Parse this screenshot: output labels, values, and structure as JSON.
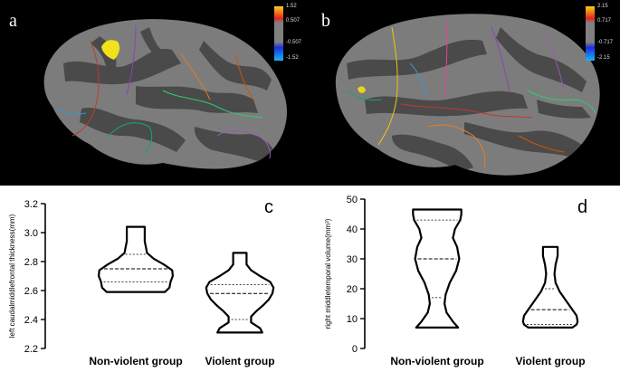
{
  "panels": {
    "a": {
      "letter": "a",
      "colorbar": {
        "labels": [
          "1.52",
          "0.507",
          "-0.507",
          "-1.52"
        ],
        "colors": [
          "#f5d21c",
          "#e8231a",
          "#808080",
          "#1a2fe0",
          "#19b5f0"
        ]
      },
      "highlight_color": "#f2e21a"
    },
    "b": {
      "letter": "b",
      "colorbar": {
        "labels": [
          "2.15",
          "0.717",
          "-0.717",
          "-2.15"
        ],
        "colors": [
          "#f5d21c",
          "#e8231a",
          "#808080",
          "#1a2fe0",
          "#19b5f0"
        ]
      },
      "highlight_color": "#e6d81a"
    },
    "c": {
      "letter": "c"
    },
    "d": {
      "letter": "d"
    }
  },
  "brain": {
    "gyrus_color": "#7c7c7c",
    "sulcus_color": "#4a4a4a",
    "boundary_colors": [
      "#c0392b",
      "#8e44ad",
      "#2ecc71",
      "#e67e22",
      "#9b59b6",
      "#16a085",
      "#d35400",
      "#3498db",
      "#f1c40f",
      "#e84393"
    ]
  },
  "chart_data": [
    {
      "type": "violin",
      "panel": "c",
      "ylabel": "left caudalmiddlefrontal thickness(mm)",
      "ylim": [
        2.2,
        3.2
      ],
      "yticks": [
        "2.2",
        "2.4",
        "2.6",
        "2.8",
        "3.0",
        "3.2"
      ],
      "categories": [
        "Non-violent group",
        "Violent group"
      ],
      "series": [
        {
          "name": "Non-violent group",
          "min": 2.59,
          "max": 3.04,
          "q1": 2.66,
          "median": 2.75,
          "q3": 2.85,
          "profile": [
            [
              2.59,
              0.52
            ],
            [
              2.62,
              0.6
            ],
            [
              2.66,
              0.62
            ],
            [
              2.7,
              0.66
            ],
            [
              2.74,
              0.65
            ],
            [
              2.78,
              0.5
            ],
            [
              2.82,
              0.32
            ],
            [
              2.86,
              0.2
            ],
            [
              2.9,
              0.18
            ],
            [
              2.94,
              0.16
            ],
            [
              2.98,
              0.16
            ],
            [
              3.02,
              0.16
            ],
            [
              3.04,
              0.16
            ]
          ]
        },
        {
          "name": "Violent group",
          "min": 2.31,
          "max": 2.86,
          "q1": 2.4,
          "median": 2.58,
          "q3": 2.64,
          "profile": [
            [
              2.31,
              0.4
            ],
            [
              2.34,
              0.36
            ],
            [
              2.38,
              0.2
            ],
            [
              2.42,
              0.2
            ],
            [
              2.46,
              0.3
            ],
            [
              2.5,
              0.42
            ],
            [
              2.54,
              0.52
            ],
            [
              2.58,
              0.58
            ],
            [
              2.62,
              0.6
            ],
            [
              2.66,
              0.54
            ],
            [
              2.7,
              0.36
            ],
            [
              2.74,
              0.2
            ],
            [
              2.78,
              0.12
            ],
            [
              2.82,
              0.12
            ],
            [
              2.86,
              0.12
            ]
          ]
        }
      ]
    },
    {
      "type": "violin",
      "panel": "d",
      "ylabel": "right  middletemporal volume(mm³)",
      "ylim": [
        0,
        50
      ],
      "yticks": [
        "0",
        "10",
        "20",
        "30",
        "40",
        "50"
      ],
      "categories": [
        "Non-violent group",
        "Violent group"
      ],
      "series": [
        {
          "name": "Non-violent group",
          "min": 7.0,
          "max": 46.5,
          "q1": 17.0,
          "median": 30.0,
          "q3": 43.0,
          "profile": [
            [
              7.0,
              0.4
            ],
            [
              9.0,
              0.3
            ],
            [
              12.0,
              0.18
            ],
            [
              15.0,
              0.14
            ],
            [
              18.0,
              0.16
            ],
            [
              22.0,
              0.24
            ],
            [
              26.0,
              0.36
            ],
            [
              30.0,
              0.42
            ],
            [
              34.0,
              0.38
            ],
            [
              37.0,
              0.3
            ],
            [
              40.0,
              0.34
            ],
            [
              43.0,
              0.44
            ],
            [
              45.0,
              0.46
            ],
            [
              46.5,
              0.46
            ]
          ]
        },
        {
          "name": "Violent group",
          "min": 7.0,
          "max": 34.0,
          "q1": 8.0,
          "median": 13.0,
          "q3": 20.0,
          "profile": [
            [
              7.0,
              0.42
            ],
            [
              8.0,
              0.5
            ],
            [
              9.0,
              0.52
            ],
            [
              11.0,
              0.5
            ],
            [
              13.0,
              0.42
            ],
            [
              16.0,
              0.3
            ],
            [
              19.0,
              0.18
            ],
            [
              22.0,
              0.1
            ],
            [
              25.0,
              0.08
            ],
            [
              28.0,
              0.1
            ],
            [
              31.0,
              0.14
            ],
            [
              33.0,
              0.14
            ],
            [
              34.0,
              0.14
            ]
          ]
        }
      ]
    }
  ]
}
